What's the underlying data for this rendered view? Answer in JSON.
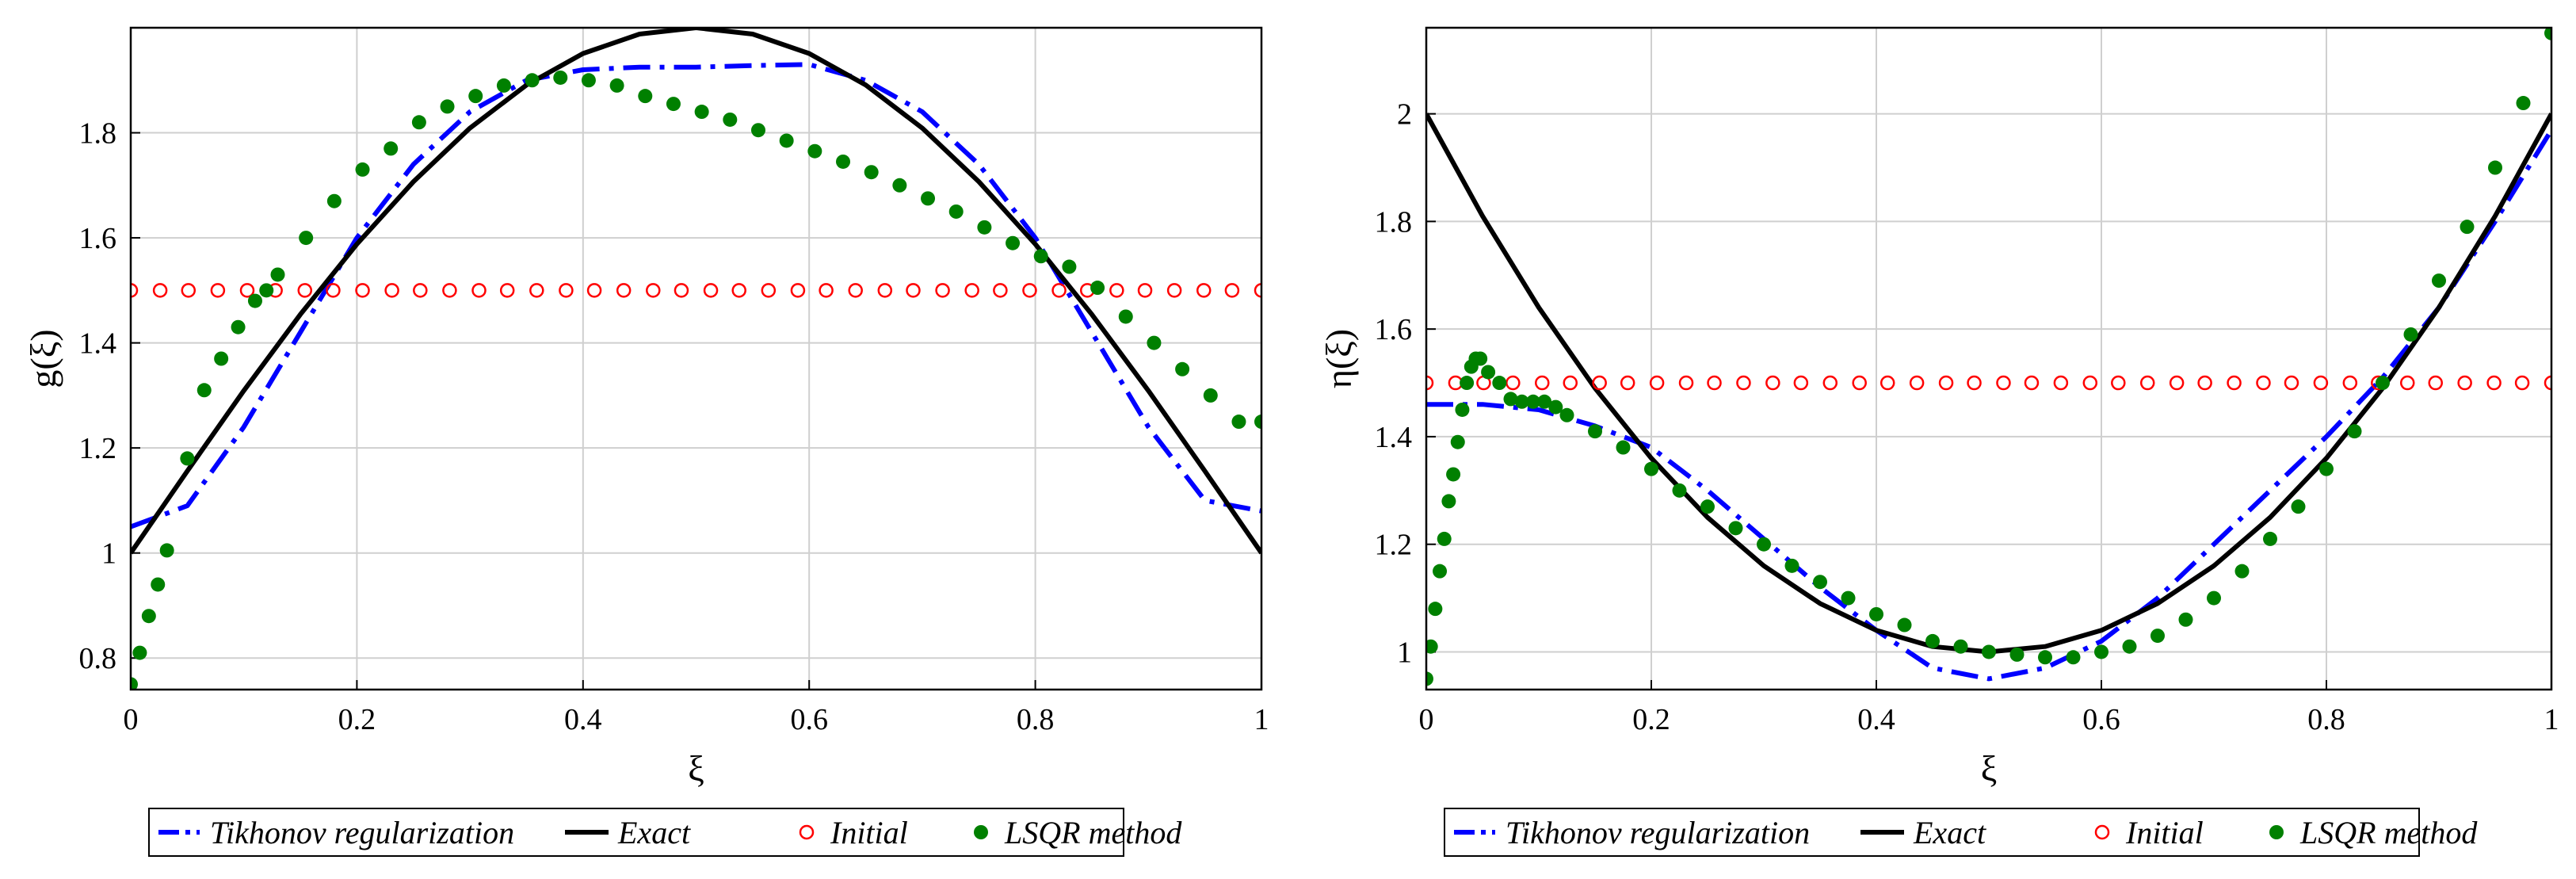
{
  "chart_data": [
    {
      "type": "line",
      "title": "",
      "xlabel": "ξ",
      "ylabel": "g(ξ)",
      "xlim": [
        0,
        1
      ],
      "ylim": [
        0.74,
        2.0
      ],
      "grid": true,
      "legend_position": "bottom",
      "xticks": [
        0,
        0.2,
        0.4,
        0.6,
        0.8,
        1
      ],
      "xtick_labels": [
        "0",
        "0.2",
        "0.4",
        "0.6",
        "0.8",
        "1"
      ],
      "yticks": [
        0.8,
        1,
        1.2,
        1.4,
        1.6,
        1.8
      ],
      "ytick_labels": [
        "0.8",
        "1",
        "1.2",
        "1.4",
        "1.6",
        "1.8"
      ],
      "series": [
        {
          "name": "Tikhonov regularization",
          "style": "dashdot",
          "color": "#0000ff",
          "x": [
            0,
            0.05,
            0.1,
            0.15,
            0.2,
            0.25,
            0.3,
            0.35,
            0.4,
            0.45,
            0.5,
            0.55,
            0.6,
            0.65,
            0.7,
            0.75,
            0.8,
            0.85,
            0.9,
            0.95,
            1
          ],
          "y": [
            1.05,
            1.09,
            1.24,
            1.42,
            1.6,
            1.74,
            1.84,
            1.9,
            1.92,
            1.925,
            1.925,
            1.928,
            1.93,
            1.9,
            1.84,
            1.74,
            1.6,
            1.42,
            1.24,
            1.1,
            1.08
          ]
        },
        {
          "name": "Exact",
          "style": "solid",
          "color": "#000000",
          "x": [
            0,
            0.05,
            0.1,
            0.15,
            0.2,
            0.25,
            0.3,
            0.35,
            0.4,
            0.45,
            0.5,
            0.55,
            0.6,
            0.65,
            0.7,
            0.75,
            0.8,
            0.85,
            0.9,
            0.95,
            1
          ],
          "y": [
            1.0,
            1.156,
            1.309,
            1.454,
            1.588,
            1.707,
            1.809,
            1.891,
            1.951,
            1.988,
            2.0,
            1.988,
            1.951,
            1.891,
            1.809,
            1.707,
            1.588,
            1.454,
            1.309,
            1.156,
            1.0
          ]
        },
        {
          "name": "Initial",
          "style": "open-circles",
          "color": "#ff0000",
          "x": [
            0,
            0.026,
            0.051,
            0.077,
            0.103,
            0.128,
            0.154,
            0.179,
            0.205,
            0.231,
            0.256,
            0.282,
            0.308,
            0.333,
            0.359,
            0.385,
            0.41,
            0.436,
            0.462,
            0.487,
            0.513,
            0.538,
            0.564,
            0.59,
            0.615,
            0.641,
            0.667,
            0.692,
            0.718,
            0.744,
            0.769,
            0.795,
            0.821,
            0.846,
            0.872,
            0.897,
            0.923,
            0.949,
            0.974,
            1.0
          ],
          "y": [
            1.5,
            1.5,
            1.5,
            1.5,
            1.5,
            1.5,
            1.5,
            1.5,
            1.5,
            1.5,
            1.5,
            1.5,
            1.5,
            1.5,
            1.5,
            1.5,
            1.5,
            1.5,
            1.5,
            1.5,
            1.5,
            1.5,
            1.5,
            1.5,
            1.5,
            1.5,
            1.5,
            1.5,
            1.5,
            1.5,
            1.5,
            1.5,
            1.5,
            1.5,
            1.5,
            1.5,
            1.5,
            1.5,
            1.5,
            1.5
          ]
        },
        {
          "name": "LSQR method",
          "style": "filled-circles",
          "color": "#008000",
          "x": [
            0,
            0.008,
            0.016,
            0.024,
            0.032,
            0.05,
            0.065,
            0.08,
            0.095,
            0.11,
            0.12,
            0.13,
            0.155,
            0.18,
            0.205,
            0.23,
            0.255,
            0.28,
            0.305,
            0.33,
            0.355,
            0.38,
            0.405,
            0.43,
            0.455,
            0.48,
            0.505,
            0.53,
            0.555,
            0.58,
            0.605,
            0.63,
            0.655,
            0.68,
            0.705,
            0.73,
            0.755,
            0.78,
            0.805,
            0.83,
            0.855,
            0.88,
            0.905,
            0.93,
            0.955,
            0.98,
            1.0
          ],
          "y": [
            0.75,
            0.81,
            0.88,
            0.94,
            1.005,
            1.18,
            1.31,
            1.37,
            1.43,
            1.48,
            1.5,
            1.53,
            1.6,
            1.67,
            1.73,
            1.77,
            1.82,
            1.85,
            1.87,
            1.89,
            1.9,
            1.905,
            1.9,
            1.89,
            1.87,
            1.855,
            1.84,
            1.825,
            1.805,
            1.785,
            1.765,
            1.745,
            1.725,
            1.7,
            1.675,
            1.65,
            1.62,
            1.59,
            1.565,
            1.545,
            1.505,
            1.45,
            1.4,
            1.35,
            1.3,
            1.25,
            1.25
          ]
        }
      ]
    },
    {
      "type": "line",
      "title": "",
      "xlabel": "ξ",
      "ylabel": "η(ξ)",
      "xlim": [
        0,
        1
      ],
      "ylim": [
        0.93,
        2.16
      ],
      "grid": true,
      "legend_position": "bottom",
      "xticks": [
        0,
        0.2,
        0.4,
        0.6,
        0.8,
        1
      ],
      "xtick_labels": [
        "0",
        "0.2",
        "0.4",
        "0.6",
        "0.8",
        "1"
      ],
      "yticks": [
        1,
        1.2,
        1.4,
        1.6,
        1.8,
        2
      ],
      "ytick_labels": [
        "1",
        "1.2",
        "1.4",
        "1.6",
        "1.8",
        "2"
      ],
      "series": [
        {
          "name": "Tikhonov regularization",
          "style": "dashdot",
          "color": "#0000ff",
          "x": [
            0,
            0.05,
            0.1,
            0.15,
            0.2,
            0.25,
            0.3,
            0.35,
            0.4,
            0.45,
            0.5,
            0.55,
            0.6,
            0.65,
            0.7,
            0.75,
            0.8,
            0.85,
            0.9,
            0.95,
            1
          ],
          "y": [
            1.46,
            1.46,
            1.45,
            1.42,
            1.38,
            1.3,
            1.21,
            1.12,
            1.04,
            0.97,
            0.95,
            0.97,
            1.02,
            1.1,
            1.2,
            1.3,
            1.4,
            1.51,
            1.64,
            1.8,
            1.97
          ]
        },
        {
          "name": "Exact",
          "style": "solid",
          "color": "#000000",
          "x": [
            0,
            0.05,
            0.1,
            0.15,
            0.2,
            0.25,
            0.3,
            0.35,
            0.4,
            0.45,
            0.5,
            0.55,
            0.6,
            0.65,
            0.7,
            0.75,
            0.8,
            0.85,
            0.9,
            0.95,
            1
          ],
          "y": [
            2.0,
            1.81,
            1.64,
            1.49,
            1.36,
            1.25,
            1.16,
            1.09,
            1.04,
            1.01,
            1.0,
            1.01,
            1.04,
            1.09,
            1.16,
            1.25,
            1.36,
            1.49,
            1.64,
            1.81,
            2.0
          ]
        },
        {
          "name": "Initial",
          "style": "open-circles",
          "color": "#ff0000",
          "x": [
            0,
            0.026,
            0.051,
            0.077,
            0.103,
            0.128,
            0.154,
            0.179,
            0.205,
            0.231,
            0.256,
            0.282,
            0.308,
            0.333,
            0.359,
            0.385,
            0.41,
            0.436,
            0.462,
            0.487,
            0.513,
            0.538,
            0.564,
            0.59,
            0.615,
            0.641,
            0.667,
            0.692,
            0.718,
            0.744,
            0.769,
            0.795,
            0.821,
            0.846,
            0.872,
            0.897,
            0.923,
            0.949,
            0.974,
            1.0
          ],
          "y": [
            1.5,
            1.5,
            1.5,
            1.5,
            1.5,
            1.5,
            1.5,
            1.5,
            1.5,
            1.5,
            1.5,
            1.5,
            1.5,
            1.5,
            1.5,
            1.5,
            1.5,
            1.5,
            1.5,
            1.5,
            1.5,
            1.5,
            1.5,
            1.5,
            1.5,
            1.5,
            1.5,
            1.5,
            1.5,
            1.5,
            1.5,
            1.5,
            1.5,
            1.5,
            1.5,
            1.5,
            1.5,
            1.5,
            1.5,
            1.5
          ]
        },
        {
          "name": "LSQR method",
          "style": "filled-circles",
          "color": "#008000",
          "x": [
            0,
            0.004,
            0.008,
            0.012,
            0.016,
            0.02,
            0.024,
            0.028,
            0.032,
            0.036,
            0.04,
            0.044,
            0.048,
            0.055,
            0.065,
            0.075,
            0.085,
            0.095,
            0.105,
            0.115,
            0.125,
            0.15,
            0.175,
            0.2,
            0.225,
            0.25,
            0.275,
            0.3,
            0.325,
            0.35,
            0.375,
            0.4,
            0.425,
            0.45,
            0.475,
            0.5,
            0.525,
            0.55,
            0.575,
            0.6,
            0.625,
            0.65,
            0.675,
            0.7,
            0.725,
            0.75,
            0.775,
            0.8,
            0.825,
            0.85,
            0.875,
            0.9,
            0.925,
            0.95,
            0.975,
            1.0
          ],
          "y": [
            0.95,
            1.01,
            1.08,
            1.15,
            1.21,
            1.28,
            1.33,
            1.39,
            1.45,
            1.5,
            1.53,
            1.545,
            1.545,
            1.52,
            1.5,
            1.47,
            1.465,
            1.465,
            1.465,
            1.455,
            1.44,
            1.41,
            1.38,
            1.34,
            1.3,
            1.27,
            1.23,
            1.2,
            1.16,
            1.13,
            1.1,
            1.07,
            1.05,
            1.02,
            1.01,
            1.0,
            0.995,
            0.99,
            0.99,
            1.0,
            1.01,
            1.03,
            1.06,
            1.1,
            1.15,
            1.21,
            1.27,
            1.34,
            1.41,
            1.5,
            1.59,
            1.69,
            1.79,
            1.9,
            2.02,
            2.15
          ]
        }
      ]
    }
  ]
}
